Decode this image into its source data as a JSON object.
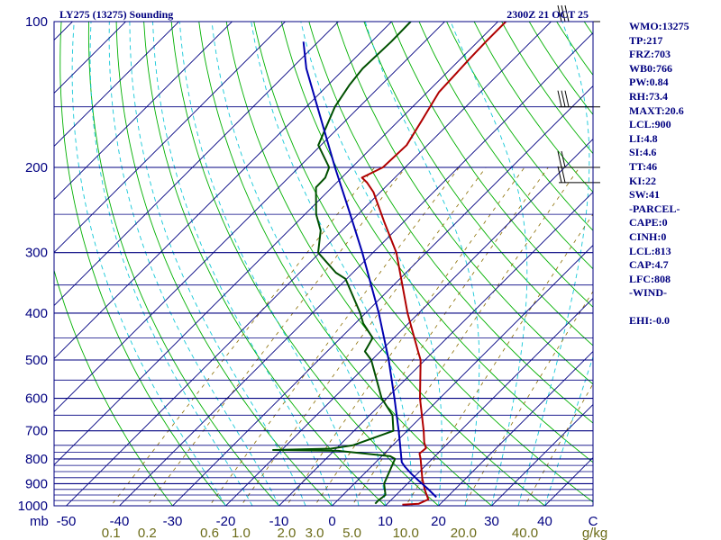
{
  "title_left": "LY275 (13275) Sounding",
  "title_right": "2300Z 21 OCT 25",
  "colors": {
    "frame": "#000080",
    "isobar": "#000080",
    "isotherm": "#000080",
    "dry_adiabat": "#00b000",
    "moist_adiabat": "#14c8d8",
    "mixing_ratio": "#8a6d00",
    "temperature": "#b00000",
    "dewpoint": "#005000",
    "parcel": "#0000b0",
    "wind_barb": "#000000"
  },
  "parameters": [
    "WMO:13275",
    "TP:217",
    "FRZ:703",
    "WB0:766",
    "PW:0.84",
    "RH:73.4",
    "MAXT:20.6",
    "LCL:900",
    "LI:4.8",
    "SI:4.6",
    "TT:46",
    "KI:22",
    "SW:41",
    "-PARCEL-",
    "CAPE:0",
    "CINH:0",
    "LCL:813",
    "CAP:4.7",
    "LFC:808",
    "-WIND-",
    "",
    "EHI:-0.0"
  ],
  "chart_data": {
    "type": "line",
    "chart_kind": "skew-T log-P sounding",
    "y_scale": "log pressure (hPa), inverted",
    "x_skew": "isotherms skewed 45 degrees",
    "pressure_range": [
      1000,
      100
    ],
    "temperature_range_at_1000hPa": [
      -50,
      50
    ],
    "pressure_tick_labels": [
      "100",
      "200",
      "300",
      "400",
      "500",
      "600",
      "700",
      "800",
      "900",
      "1000"
    ],
    "pressure_ticks": [
      100,
      200,
      300,
      400,
      500,
      600,
      700,
      800,
      900,
      1000
    ],
    "temperature_tick_labels": [
      "-50",
      "-40",
      "-30",
      "-20",
      "-10",
      "0",
      "10",
      "20",
      "30",
      "40",
      "C"
    ],
    "temperature_ticks": [
      -50,
      -40,
      -30,
      -20,
      -10,
      0,
      10,
      20,
      30,
      40
    ],
    "x_unit_label": "C",
    "y_unit_label": "mb",
    "mixing_ratio_tick_labels": [
      "0.1",
      "0.2",
      "0.6",
      "1.0",
      "2.0",
      "3.0",
      "5.0",
      "10.0",
      "20.0",
      "40.0",
      "g/kg"
    ],
    "mixing_ratio_ticks": [
      0.1,
      0.2,
      0.6,
      1.0,
      2.0,
      3.0,
      5.0,
      10.0,
      20.0,
      40.0
    ],
    "mixing_ratio_unit": "g/kg",
    "series": [
      {
        "role": "temperature",
        "points": [
          [
            995,
            13.0
          ],
          [
            990,
            15.9
          ],
          [
            970,
            16.9
          ],
          [
            930,
            14.6
          ],
          [
            880,
            11.9
          ],
          [
            800,
            7.8
          ],
          [
            780,
            6.6
          ],
          [
            760,
            6.8
          ],
          [
            740,
            5.4
          ],
          [
            700,
            3.1
          ],
          [
            600,
            -3.7
          ],
          [
            500,
            -10.8
          ],
          [
            480,
            -12.9
          ],
          [
            400,
            -22.1
          ],
          [
            300,
            -35.6
          ],
          [
            260,
            -43.5
          ],
          [
            225,
            -51.3
          ],
          [
            215,
            -54.3
          ],
          [
            210,
            -56.2
          ],
          [
            200,
            -54.2
          ],
          [
            180,
            -53.9
          ],
          [
            160,
            -55.7
          ],
          [
            140,
            -57.8
          ],
          [
            120,
            -58.3
          ],
          [
            110,
            -58.5
          ],
          [
            100,
            -58.5
          ]
        ]
      },
      {
        "role": "dewpoint",
        "points": [
          [
            990,
            7.7
          ],
          [
            975,
            7.7
          ],
          [
            950,
            8.0
          ],
          [
            900,
            5.6
          ],
          [
            800,
            3.0
          ],
          [
            790,
            1.6
          ],
          [
            770,
            -9.2
          ],
          [
            767,
            -21.6
          ],
          [
            762,
            -11.0
          ],
          [
            750,
            -7.5
          ],
          [
            700,
            -2.6
          ],
          [
            650,
            -5.7
          ],
          [
            600,
            -10.9
          ],
          [
            500,
            -20.1
          ],
          [
            480,
            -22.9
          ],
          [
            450,
            -24.0
          ],
          [
            420,
            -28.5
          ],
          [
            400,
            -31.0
          ],
          [
            340,
            -40.2
          ],
          [
            330,
            -43.2
          ],
          [
            300,
            -50.3
          ],
          [
            270,
            -54.0
          ],
          [
            250,
            -57.9
          ],
          [
            220,
            -63.0
          ],
          [
            210,
            -63.1
          ],
          [
            200,
            -64.3
          ],
          [
            180,
            -70.5
          ],
          [
            150,
            -74.6
          ],
          [
            135,
            -76.0
          ],
          [
            125,
            -76.6
          ],
          [
            110,
            -76.3
          ],
          [
            100,
            -76.4
          ]
        ]
      },
      {
        "role": "parcel",
        "points": [
          [
            960,
            18.0
          ],
          [
            920,
            14.6
          ],
          [
            890,
            11.8
          ],
          [
            860,
            9.0
          ],
          [
            830,
            6.3
          ],
          [
            813,
            4.9
          ],
          [
            800,
            4.2
          ],
          [
            750,
            1.4
          ],
          [
            700,
            -1.6
          ],
          [
            600,
            -8.5
          ],
          [
            500,
            -16.8
          ],
          [
            400,
            -27.5
          ],
          [
            300,
            -42.0
          ],
          [
            250,
            -51.5
          ],
          [
            200,
            -63.2
          ],
          [
            150,
            -77.9
          ],
          [
            125,
            -87.2
          ],
          [
            110,
            -92.8
          ]
        ]
      }
    ],
    "wind_barbs": [
      {
        "pressure": 100,
        "speed_kt": 30
      },
      {
        "pressure": 150,
        "speed_kt": 30
      },
      {
        "pressure": 200,
        "speed_kt": 20
      },
      {
        "pressure": 215,
        "speed_kt": 20
      }
    ]
  }
}
